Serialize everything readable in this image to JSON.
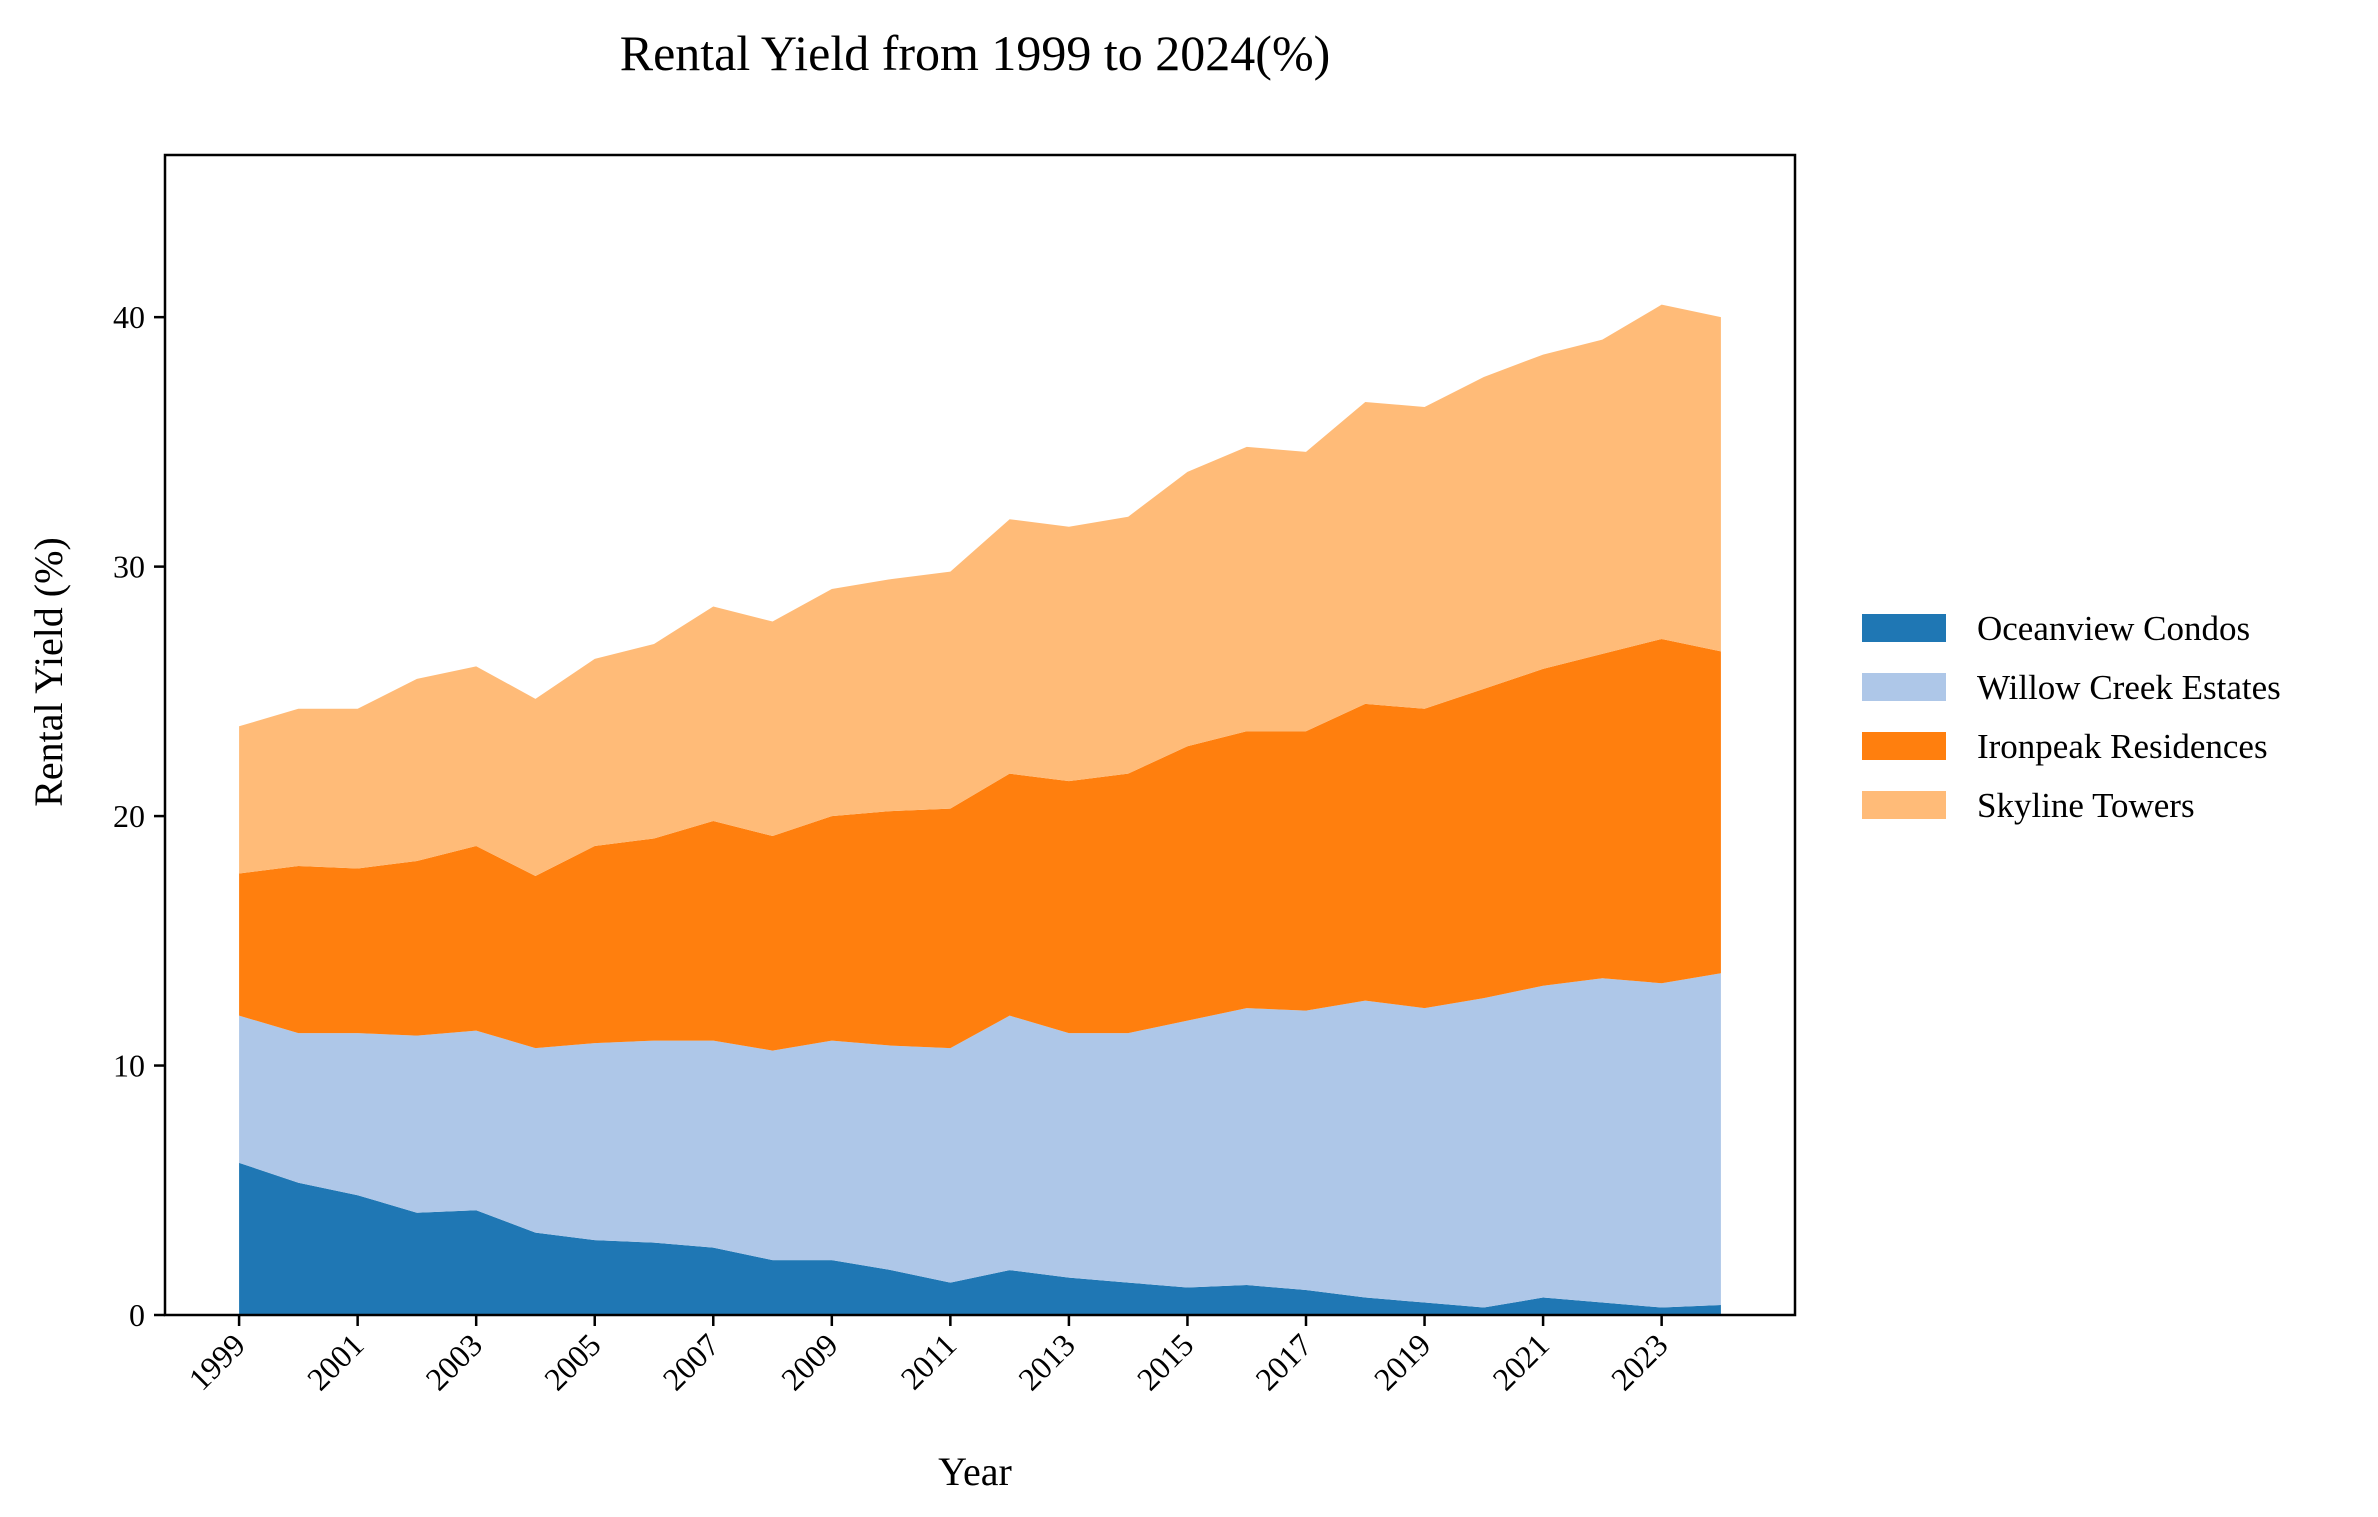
{
  "chart_data": {
    "type": "area",
    "stacked": true,
    "title": "Rental Yield from 1999 to 2024(%)",
    "xlabel": "Year",
    "ylabel": "Rental Yield (%)",
    "ylim": [
      0,
      46.5
    ],
    "yticks": [
      0,
      10,
      20,
      30,
      40
    ],
    "xticks": [
      1999,
      2001,
      2003,
      2005,
      2007,
      2009,
      2011,
      2013,
      2015,
      2017,
      2019,
      2021,
      2023
    ],
    "x": [
      1999,
      2000,
      2001,
      2002,
      2003,
      2004,
      2005,
      2006,
      2007,
      2008,
      2009,
      2010,
      2011,
      2012,
      2013,
      2014,
      2015,
      2016,
      2017,
      2018,
      2019,
      2020,
      2021,
      2022,
      2023,
      2024
    ],
    "legend_position": "right",
    "grid": false,
    "series": [
      {
        "name": "Oceanview Condos",
        "color": "#1f77b4",
        "values": [
          6.1,
          5.3,
          4.8,
          4.1,
          4.2,
          3.3,
          3.0,
          2.9,
          2.7,
          2.2,
          2.2,
          1.8,
          1.3,
          1.8,
          1.5,
          1.3,
          1.1,
          1.2,
          1.0,
          0.7,
          0.5,
          0.3,
          0.7,
          0.5,
          0.3,
          0.4
        ]
      },
      {
        "name": "Willow Creek Estates",
        "color": "#aec7e8",
        "values": [
          5.9,
          6.0,
          6.5,
          7.1,
          7.2,
          7.4,
          7.9,
          8.1,
          8.3,
          8.4,
          8.8,
          9.0,
          9.4,
          10.2,
          9.8,
          10.0,
          10.7,
          11.1,
          11.2,
          11.9,
          11.8,
          12.4,
          12.5,
          13.0,
          13.0,
          13.3
        ]
      },
      {
        "name": "Ironpeak Residences",
        "color": "#ff7f0e",
        "values": [
          5.7,
          6.7,
          6.6,
          7.0,
          7.4,
          6.9,
          7.9,
          8.1,
          8.8,
          8.6,
          9.0,
          9.4,
          9.6,
          9.7,
          10.1,
          10.4,
          11.0,
          11.1,
          11.2,
          11.9,
          12.0,
          12.4,
          12.7,
          13.0,
          13.8,
          12.9
        ]
      },
      {
        "name": "Skyline Towers",
        "color": "#ffbb78",
        "values": [
          5.9,
          6.3,
          6.4,
          7.3,
          7.2,
          7.1,
          7.5,
          7.8,
          8.6,
          8.6,
          9.1,
          9.3,
          9.5,
          10.2,
          10.2,
          10.3,
          11.0,
          11.4,
          11.2,
          12.1,
          12.1,
          12.5,
          12.6,
          12.6,
          13.4,
          13.4
        ]
      }
    ]
  }
}
